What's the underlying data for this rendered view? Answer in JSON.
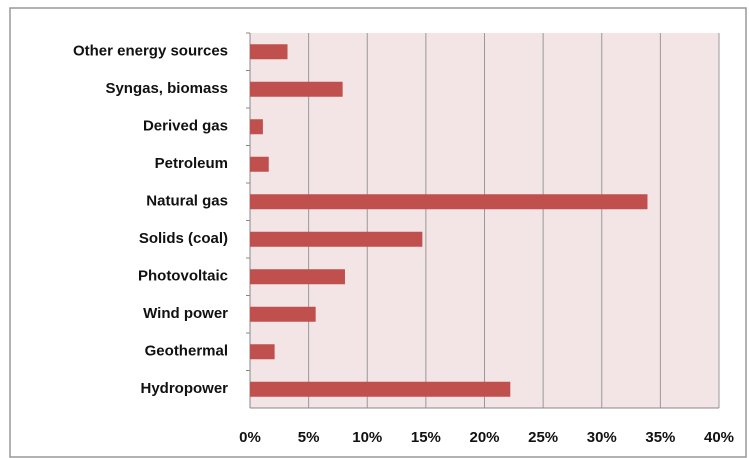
{
  "chart_data": {
    "type": "bar",
    "orientation": "horizontal",
    "categories": [
      "Other energy sources",
      "Syngas, biomass",
      "Derived gas",
      "Petroleum",
      "Natural gas",
      "Solids (coal)",
      "Photovoltaic",
      "Wind power",
      "Geothermal",
      "Hydropower"
    ],
    "values": [
      3.2,
      7.9,
      1.1,
      1.6,
      33.9,
      14.7,
      8.1,
      5.6,
      2.1,
      22.2
    ],
    "color": "#c0504d",
    "xlim": [
      0,
      40
    ],
    "xticks": [
      {
        "value": 0,
        "label": "0%"
      },
      {
        "value": 5,
        "label": "5%"
      },
      {
        "value": 10,
        "label": "10%"
      },
      {
        "value": 15,
        "label": "15%"
      },
      {
        "value": 20,
        "label": "20%"
      },
      {
        "value": 25,
        "label": "25%"
      },
      {
        "value": 30,
        "label": "30%"
      },
      {
        "value": 35,
        "label": "35%"
      },
      {
        "value": 40,
        "label": "40%"
      }
    ],
    "grid": true
  }
}
